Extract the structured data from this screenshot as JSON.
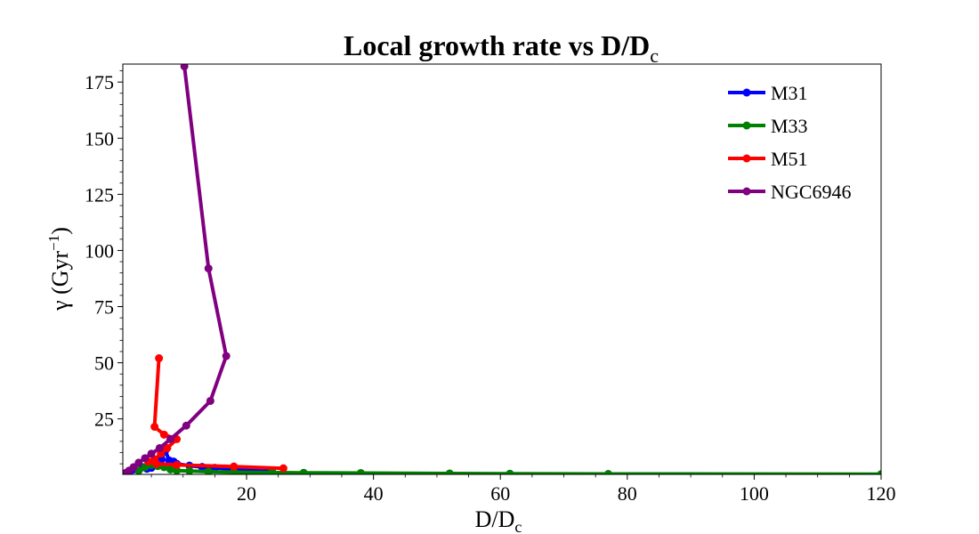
{
  "chart_data": {
    "type": "line",
    "title": "Local growth rate vs D/D",
    "title_sub": "c",
    "xlabel_main": "D/D",
    "xlabel_sub": "c",
    "ylabel_main": "γ (Gyr",
    "ylabel_sup": "−1",
    "ylabel_close": ")",
    "xlim": [
      0.5,
      120
    ],
    "ylim": [
      0.3,
      183
    ],
    "x_ticks": [
      20,
      40,
      60,
      80,
      100,
      120
    ],
    "x_tick_labels": [
      "20",
      "40",
      "60",
      "80",
      "100",
      "120"
    ],
    "y_ticks": [
      25,
      50,
      75,
      100,
      125,
      150,
      175
    ],
    "y_tick_labels": [
      "25",
      "50",
      "75",
      "100",
      "125",
      "150",
      "175"
    ],
    "legend_position": "top-right",
    "grid": false,
    "series": [
      {
        "name": "M31",
        "color": "#0000ff",
        "points": [
          [
            1.5,
            1.2
          ],
          [
            2.2,
            2.5
          ],
          [
            3.0,
            2.0
          ],
          [
            3.6,
            3.5
          ],
          [
            4.3,
            2.8
          ],
          [
            5.0,
            3.2
          ],
          [
            5.5,
            4.5
          ],
          [
            6.0,
            5.5
          ],
          [
            6.6,
            7.0
          ],
          [
            7.2,
            11.0
          ],
          [
            7.8,
            6.5
          ],
          [
            8.5,
            6.0
          ],
          [
            9.0,
            5.0
          ],
          [
            11.0,
            4.2
          ],
          [
            13.0,
            3.6
          ],
          [
            15.0,
            3.2
          ],
          [
            18.0,
            2.5
          ],
          [
            21.0,
            2.0
          ],
          [
            24.0,
            1.6
          ]
        ]
      },
      {
        "name": "M33",
        "color": "#008000",
        "points": [
          [
            3.0,
            2.0
          ],
          [
            4.0,
            3.5
          ],
          [
            5.0,
            4.5
          ],
          [
            6.0,
            4.0
          ],
          [
            7.0,
            3.5
          ],
          [
            8.0,
            2.5
          ],
          [
            9.0,
            2.0
          ],
          [
            11.0,
            1.8
          ],
          [
            14.0,
            1.5
          ],
          [
            18.0,
            1.3
          ],
          [
            24.0,
            1.1
          ],
          [
            29.0,
            1.0
          ],
          [
            38.0,
            0.9
          ],
          [
            52.0,
            0.7
          ],
          [
            61.5,
            0.6
          ],
          [
            77.0,
            0.5
          ],
          [
            120.0,
            0.4
          ]
        ]
      },
      {
        "name": "M51",
        "color": "#ff0000",
        "points": [
          [
            6.2,
            52.0
          ],
          [
            5.5,
            21.5
          ],
          [
            7.0,
            18.0
          ],
          [
            9.0,
            16.0
          ],
          [
            7.5,
            12.0
          ],
          [
            6.5,
            9.5
          ],
          [
            5.5,
            7.0
          ],
          [
            4.5,
            6.0
          ],
          [
            5.8,
            5.0
          ],
          [
            9.0,
            4.5
          ],
          [
            18.0,
            3.8
          ],
          [
            25.8,
            3.0
          ]
        ]
      },
      {
        "name": "NGC6946",
        "color": "#800080",
        "points": [
          [
            10.2,
            182.0
          ],
          [
            14.0,
            92.0
          ],
          [
            16.8,
            53.0
          ],
          [
            14.3,
            33.0
          ],
          [
            10.5,
            22.0
          ],
          [
            8.0,
            16.0
          ],
          [
            6.3,
            12.0
          ],
          [
            5.0,
            9.5
          ],
          [
            4.0,
            7.5
          ],
          [
            3.0,
            5.5
          ],
          [
            2.2,
            3.5
          ],
          [
            1.5,
            2.0
          ],
          [
            1.0,
            1.0
          ]
        ]
      }
    ]
  }
}
